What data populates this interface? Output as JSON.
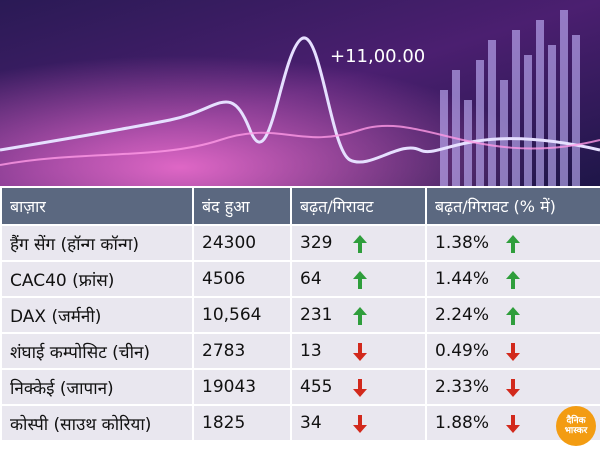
{
  "banner": {
    "text": "+11,00.00"
  },
  "table": {
    "header": [
      "बाज़ार",
      "बंद हुआ",
      "बढ़त/गिरावट",
      "बढ़त/गिरावट (% में)"
    ],
    "rows": [
      [
        "हैंग सेंग (हॉन्ग कॉन्ग)",
        "24300",
        "329",
        "1.38%"
      ],
      [
        "CAC40 (फ्रांस)",
        "4506",
        "64",
        "1.44%"
      ],
      [
        "DAX (जर्मनी)",
        "10,564",
        "231",
        "2.24%"
      ],
      [
        "शंघाई कम्पोसिट (चीन)",
        "2783",
        "13",
        "0.49%"
      ],
      [
        "निक्केई (जापान)",
        "19043",
        "455",
        "2.33%"
      ],
      [
        "कोस्पी (साउथ कोरिया)",
        "1825",
        "34",
        "1.88%"
      ]
    ],
    "trend": [
      "up",
      "up",
      "up",
      "down",
      "down",
      "down"
    ],
    "colors": {
      "up": "#2f9e3c",
      "down": "#d2291c"
    }
  },
  "logo": {
    "line1": "दैनिक",
    "line2": "भास्कर"
  }
}
